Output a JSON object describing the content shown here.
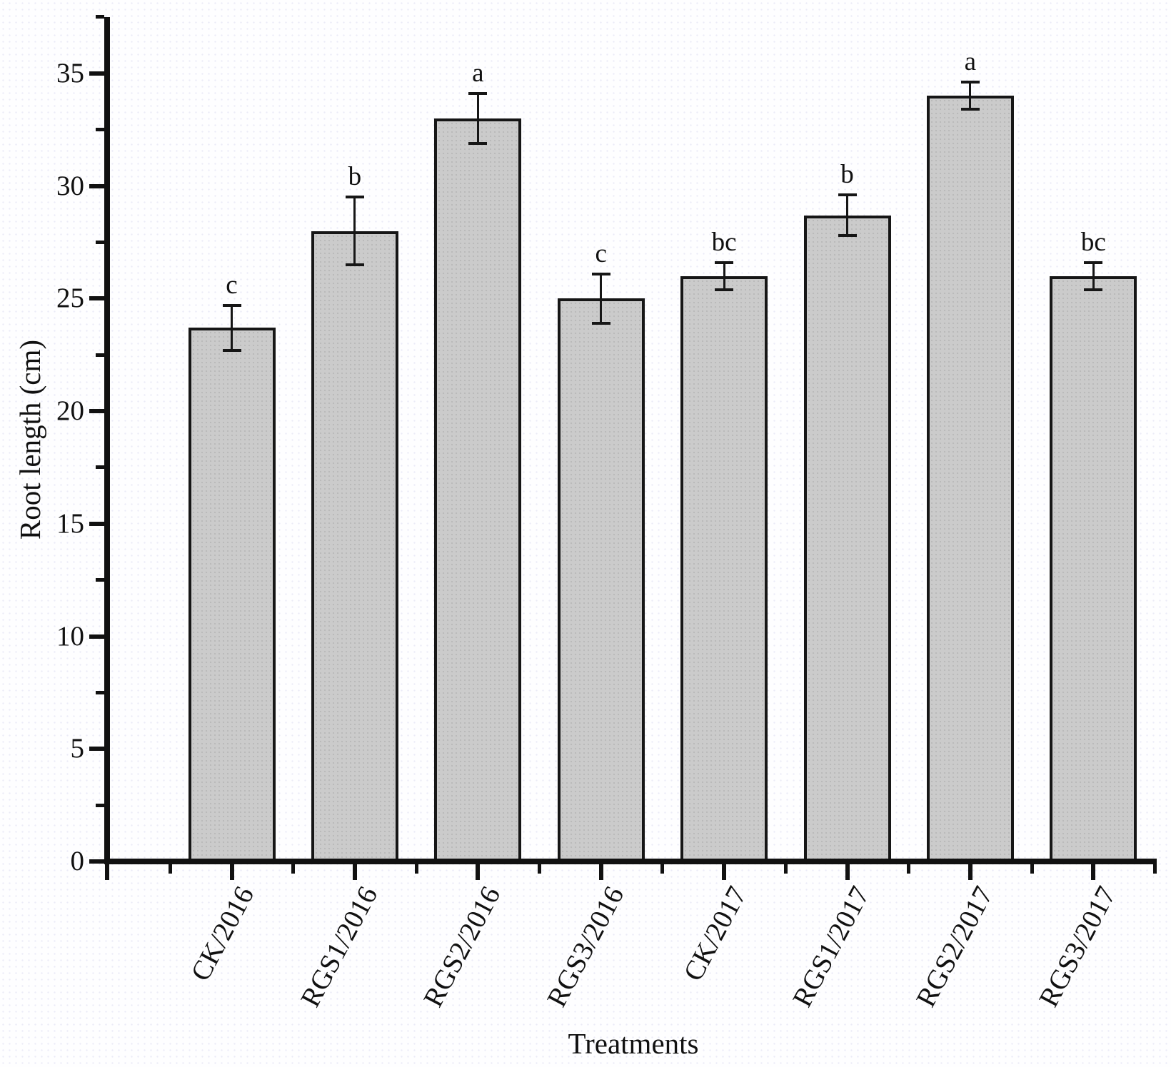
{
  "chart_data": {
    "type": "bar",
    "title": "",
    "xlabel": "Treatments",
    "ylabel": "Root length (cm)",
    "categories": [
      "CK/2016",
      "RGS1/2016",
      "RGS2/2016",
      "RGS3/2016",
      "CK/2017",
      "RGS1/2017",
      "RGS2/2017",
      "RGS3/2017"
    ],
    "values": [
      23.7,
      28.0,
      33.0,
      25.0,
      26.0,
      28.7,
      34.0,
      26.0
    ],
    "errors": [
      1.0,
      1.5,
      1.1,
      1.1,
      0.6,
      0.9,
      0.6,
      0.6
    ],
    "sig_letters": [
      "c",
      "b",
      "a",
      "c",
      "bc",
      "b",
      "a",
      "bc"
    ],
    "ylim": [
      0,
      37.5
    ],
    "y_major_ticks": [
      0,
      5,
      10,
      15,
      20,
      25,
      30,
      35
    ],
    "y_minor_tick_step": 2.5,
    "x_minor_ticks_between_bars": true,
    "grid": false,
    "legend": null,
    "bar_fill_color": "#cbcbcb",
    "bar_border_color": "#161616",
    "error_bar_color": "#161616",
    "axis_color": "#111111",
    "background_color": "#fefeff"
  }
}
